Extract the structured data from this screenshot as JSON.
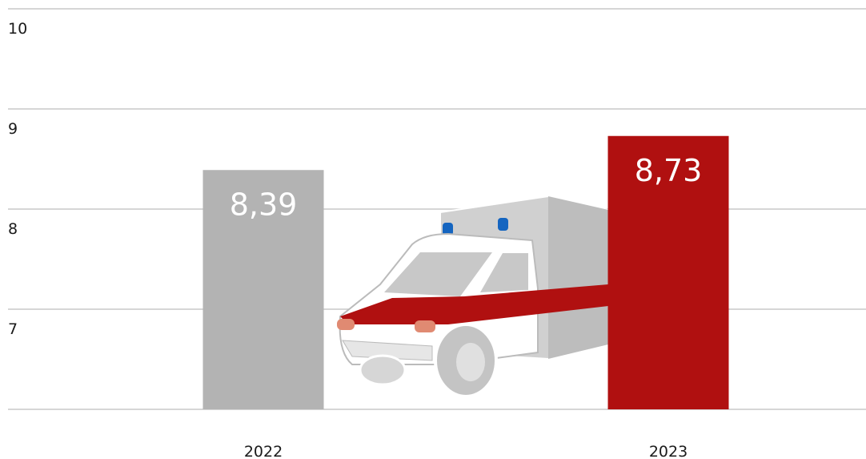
{
  "chart_data": {
    "type": "bar",
    "categories": [
      "2022",
      "2023"
    ],
    "values": [
      8.39,
      8.73
    ],
    "value_labels": [
      "8,39",
      "8,73"
    ],
    "colors": [
      "#b3b3b3",
      "#b01010"
    ],
    "ylim": [
      6,
      10
    ],
    "yticks": [
      7,
      8,
      9,
      10
    ],
    "grid": true
  }
}
